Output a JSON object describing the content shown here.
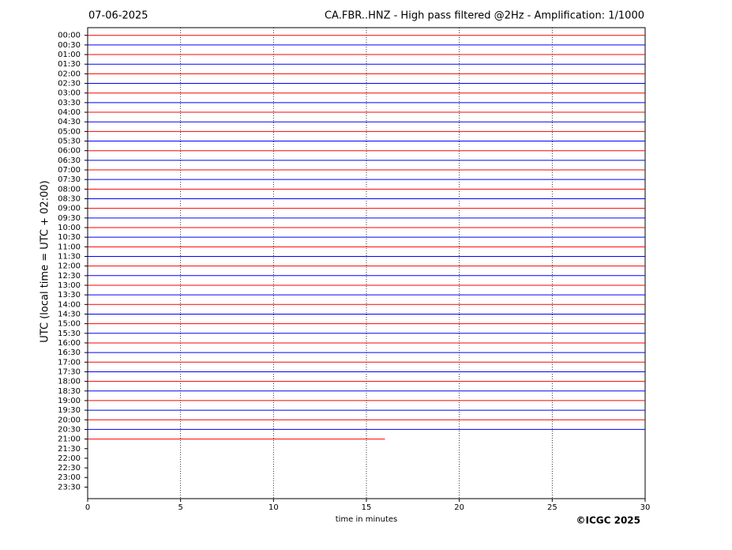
{
  "chart_data": {
    "type": "helicorder",
    "date": "07-06-2025",
    "title": "CA.FBR..HNZ - High pass filtered @2Hz - Amplification: 1/1000",
    "x_label": "time in minutes",
    "y_label": "UTC (local time = UTC + 02:00)",
    "copyright": "©ICGC 2025",
    "categories": [
      "00:00",
      "00:30",
      "01:00",
      "01:30",
      "02:00",
      "02:30",
      "03:00",
      "03:30",
      "04:00",
      "04:30",
      "05:00",
      "05:30",
      "06:00",
      "06:30",
      "07:00",
      "07:30",
      "08:00",
      "08:30",
      "09:00",
      "09:30",
      "10:00",
      "10:30",
      "11:00",
      "11:30",
      "12:00",
      "12:30",
      "13:00",
      "13:30",
      "14:00",
      "14:30",
      "15:00",
      "15:30",
      "16:00",
      "16:30",
      "17:00",
      "17:30",
      "18:00",
      "18:30",
      "19:00",
      "19:30",
      "20:00",
      "20:30",
      "21:00",
      "21:30",
      "22:00",
      "22:30",
      "23:00",
      "23:30"
    ],
    "values": [
      30,
      30,
      30,
      30,
      30,
      30,
      30,
      30,
      30,
      30,
      30,
      30,
      30,
      30,
      30,
      30,
      30,
      30,
      30,
      30,
      30,
      30,
      30,
      30,
      30,
      30,
      30,
      30,
      30,
      30,
      30,
      30,
      30,
      30,
      30,
      30,
      30,
      30,
      30,
      30,
      30,
      30,
      16,
      null,
      null,
      null,
      null,
      null
    ],
    "colors": [
      "#ff0000",
      "#0000ff"
    ],
    "xlim": [
      0,
      30
    ],
    "xticks": [
      0,
      5,
      10,
      15,
      20,
      25,
      30
    ],
    "grid": true
  }
}
